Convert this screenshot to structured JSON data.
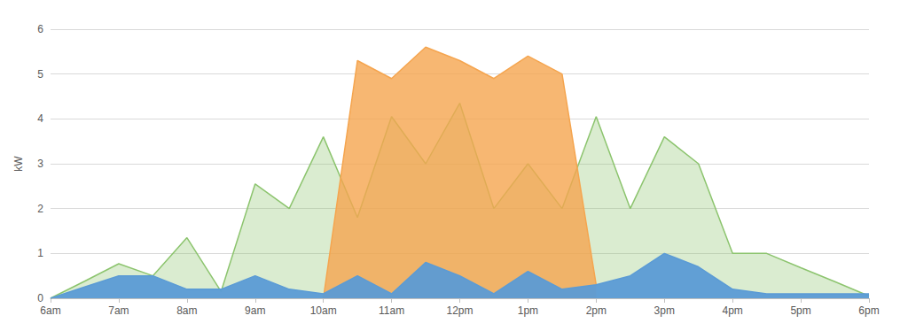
{
  "chart_data": {
    "type": "area",
    "y_label": "kW",
    "categories": [
      "6am",
      null,
      "7am",
      null,
      "8am",
      null,
      "9am",
      null,
      "10am",
      null,
      "11am",
      null,
      "12pm",
      null,
      "1pm",
      null,
      "2pm",
      null,
      "3pm",
      null,
      "4pm",
      null,
      "5pm",
      null,
      "6pm"
    ],
    "series": [
      {
        "color": "#8cc46e",
        "values": [
          0,
          0.38,
          0.77,
          0.5,
          1.35,
          0.15,
          2.55,
          2.0,
          3.6,
          1.8,
          4.05,
          3.0,
          4.35,
          2.0,
          3.0,
          2.0,
          4.05,
          2.0,
          3.6,
          3.0,
          1.0,
          1.0,
          0.68,
          0.37,
          0.05
        ]
      },
      {
        "color": "#f5a54f",
        "values": [
          null,
          null,
          null,
          null,
          null,
          null,
          null,
          null,
          0,
          5.3,
          4.9,
          5.6,
          5.3,
          4.9,
          5.4,
          5.0,
          0.3,
          null,
          null,
          null,
          null,
          null,
          null,
          null,
          null
        ]
      },
      {
        "color": "#5b9bd5",
        "values": [
          0,
          0.25,
          0.5,
          0.5,
          0.2,
          0.2,
          0.5,
          0.2,
          0.1,
          0.5,
          0.1,
          0.8,
          0.5,
          0.1,
          0.6,
          0.2,
          0.3,
          0.5,
          1.0,
          0.7,
          0.2,
          0.1,
          0.1,
          0.1,
          0.1
        ]
      }
    ],
    "ylim": [
      0,
      6
    ],
    "yticks": [
      0,
      1,
      2,
      3,
      4,
      5,
      6
    ],
    "grid": true
  }
}
